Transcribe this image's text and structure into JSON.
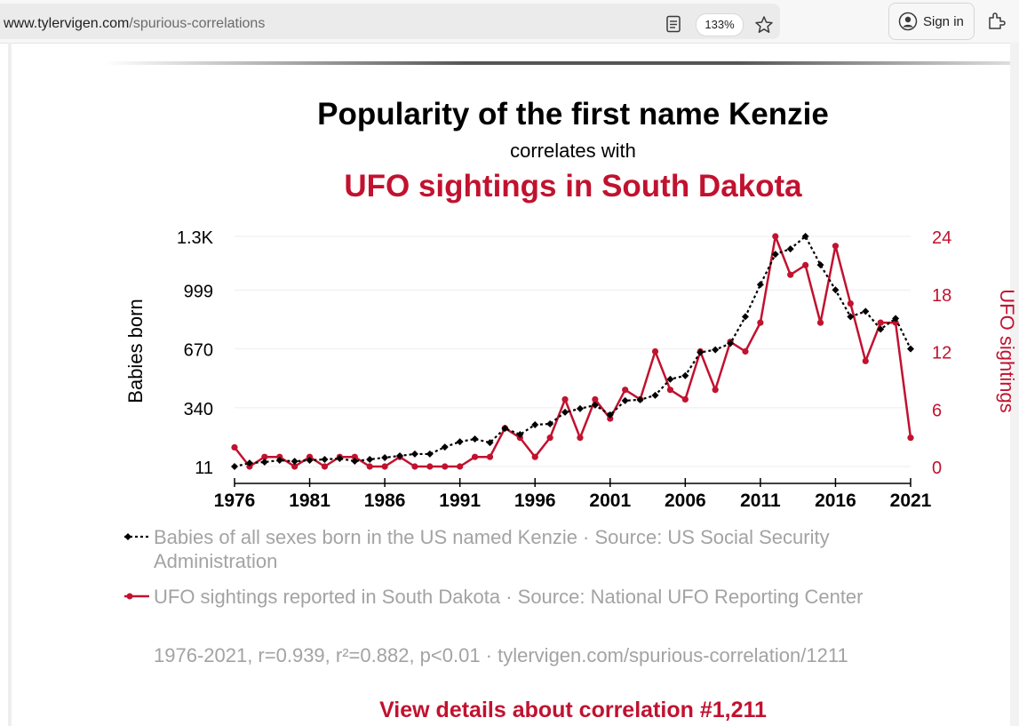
{
  "browser": {
    "url_domain": "www.tylervigen.com",
    "url_path": "/spurious-correlations",
    "zoom": "133%",
    "signin_label": "Sign in"
  },
  "page": {
    "title": "Popularity of the first name Kenzie",
    "correlates": "correlates with",
    "title2": "UFO sightings in South Dakota",
    "legend1": "Babies of all sexes born in the US named Kenzie · Source: US Social Security Administration",
    "legend2": "UFO sightings reported in South Dakota · Source: National UFO Reporting Center",
    "stats": "1976-2021, r=0.939, r²=0.882, p<0.01 · tylervigen.com/spurious-correlation/1211",
    "details_link": "View details about correlation #1,211"
  },
  "colors": {
    "series1": "#000000",
    "series2": "#c1122f",
    "grid": "#eeeeee"
  },
  "chart_data": {
    "type": "line",
    "x": [
      1976,
      1977,
      1978,
      1979,
      1980,
      1981,
      1982,
      1983,
      1984,
      1985,
      1986,
      1987,
      1988,
      1989,
      1990,
      1991,
      1992,
      1993,
      1994,
      1995,
      1996,
      1997,
      1998,
      1999,
      2000,
      2001,
      2002,
      2003,
      2004,
      2005,
      2006,
      2007,
      2008,
      2009,
      2010,
      2011,
      2012,
      2013,
      2014,
      2015,
      2016,
      2017,
      2018,
      2019,
      2020,
      2021
    ],
    "x_ticks": [
      1976,
      1981,
      1986,
      1991,
      1996,
      2001,
      2006,
      2011,
      2016,
      2021
    ],
    "xlim": [
      1976,
      2021
    ],
    "series": [
      {
        "name": "Babies of all sexes born in the US named Kenzie",
        "axis": "left",
        "style": "dashed-diamond",
        "values": [
          11,
          30,
          36,
          46,
          40,
          46,
          51,
          56,
          41,
          51,
          61,
          71,
          81,
          81,
          120,
          150,
          165,
          145,
          225,
          190,
          245,
          250,
          315,
          335,
          355,
          300,
          380,
          385,
          410,
          500,
          520,
          650,
          665,
          700,
          850,
          1030,
          1200,
          1230,
          1300,
          1140,
          1000,
          850,
          880,
          780,
          840,
          670
        ]
      },
      {
        "name": "UFO sightings reported in South Dakota",
        "axis": "right",
        "style": "solid-circle",
        "values": [
          2,
          0,
          1,
          1,
          0,
          1,
          0,
          1,
          1,
          0,
          0,
          1,
          0,
          0,
          0,
          0,
          1,
          1,
          4,
          3,
          1,
          3,
          7,
          3,
          7,
          5,
          8,
          7,
          12,
          8,
          7,
          12,
          8,
          13,
          12,
          15,
          24,
          20,
          21,
          15,
          23,
          17,
          11,
          15,
          15,
          3
        ]
      }
    ],
    "left_axis": {
      "label": "Babies born",
      "ticks": [
        "11",
        "340",
        "670",
        "999",
        "1.3K"
      ],
      "tick_values": [
        11,
        340,
        670,
        999,
        1300
      ],
      "ylim": [
        11,
        1300
      ]
    },
    "right_axis": {
      "label": "UFO sightings",
      "ticks": [
        "0",
        "6",
        "12",
        "18",
        "24"
      ],
      "tick_values": [
        0,
        6,
        12,
        18,
        24
      ],
      "ylim": [
        0,
        24
      ]
    },
    "grid": true
  }
}
